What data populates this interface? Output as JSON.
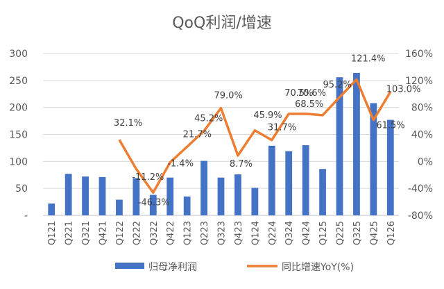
{
  "chart_data": {
    "type": "bar+line",
    "title": "QoQ利润/增速",
    "categories": [
      "Q121",
      "Q221",
      "Q321",
      "Q421",
      "Q122",
      "Q222",
      "Q322",
      "Q422",
      "Q123",
      "Q223",
      "Q323",
      "Q423",
      "Q124",
      "Q224",
      "Q324",
      "Q424",
      "Q125",
      "Q225",
      "Q325",
      "Q425",
      "Q126"
    ],
    "series": [
      {
        "name": "归母净利润",
        "type": "bar",
        "axis": "left",
        "color": "#4472C4",
        "values": [
          22,
          77,
          72,
          71,
          29,
          69,
          38,
          70,
          35,
          101,
          70,
          76,
          51,
          129,
          119,
          130,
          86,
          256,
          264,
          208,
          177
        ]
      },
      {
        "name": "同比增速YoY(%)",
        "type": "line",
        "axis": "right",
        "color": "#ED7D31",
        "values": [
          null,
          null,
          null,
          null,
          32.1,
          -11.2,
          -46.3,
          -1.4,
          21.7,
          45.2,
          79.0,
          8.7,
          45.9,
          31.7,
          70.5,
          70.6,
          68.5,
          95.2,
          121.4,
          61.5,
          103.0
        ]
      }
    ],
    "line_labels": [
      {
        "index": 4,
        "text": "32.1%"
      },
      {
        "index": 5,
        "text": "-11.2%"
      },
      {
        "index": 6,
        "text": "-46.3%"
      },
      {
        "index": 7,
        "text": "-1.4%"
      },
      {
        "index": 8,
        "text": "21.7%"
      },
      {
        "index": 9,
        "text": "45.2%"
      },
      {
        "index": 10,
        "text": "79.0%"
      },
      {
        "index": 11,
        "text": "8.7%"
      },
      {
        "index": 12,
        "text": "45.9%"
      },
      {
        "index": 13,
        "text": "31.7%"
      },
      {
        "index": 14,
        "text": "70.5%"
      },
      {
        "index": 15,
        "text": "70.6%"
      },
      {
        "index": 16,
        "text": "68.5%"
      },
      {
        "index": 17,
        "text": "95.2%"
      },
      {
        "index": 18,
        "text": "121.4%"
      },
      {
        "index": 19,
        "text": "61.5%"
      },
      {
        "index": 20,
        "text": "103.0%"
      }
    ],
    "y_left": {
      "ylim": [
        0,
        300
      ],
      "ticks": [
        "-",
        "50",
        "100",
        "150",
        "200",
        "250",
        "300"
      ]
    },
    "y_right": {
      "ylim": [
        -80,
        160
      ],
      "ticks": [
        "-80%",
        "-40%",
        "0%",
        "40%",
        "80%",
        "120%",
        "160%"
      ]
    },
    "grid": true,
    "legend_position": "bottom"
  }
}
